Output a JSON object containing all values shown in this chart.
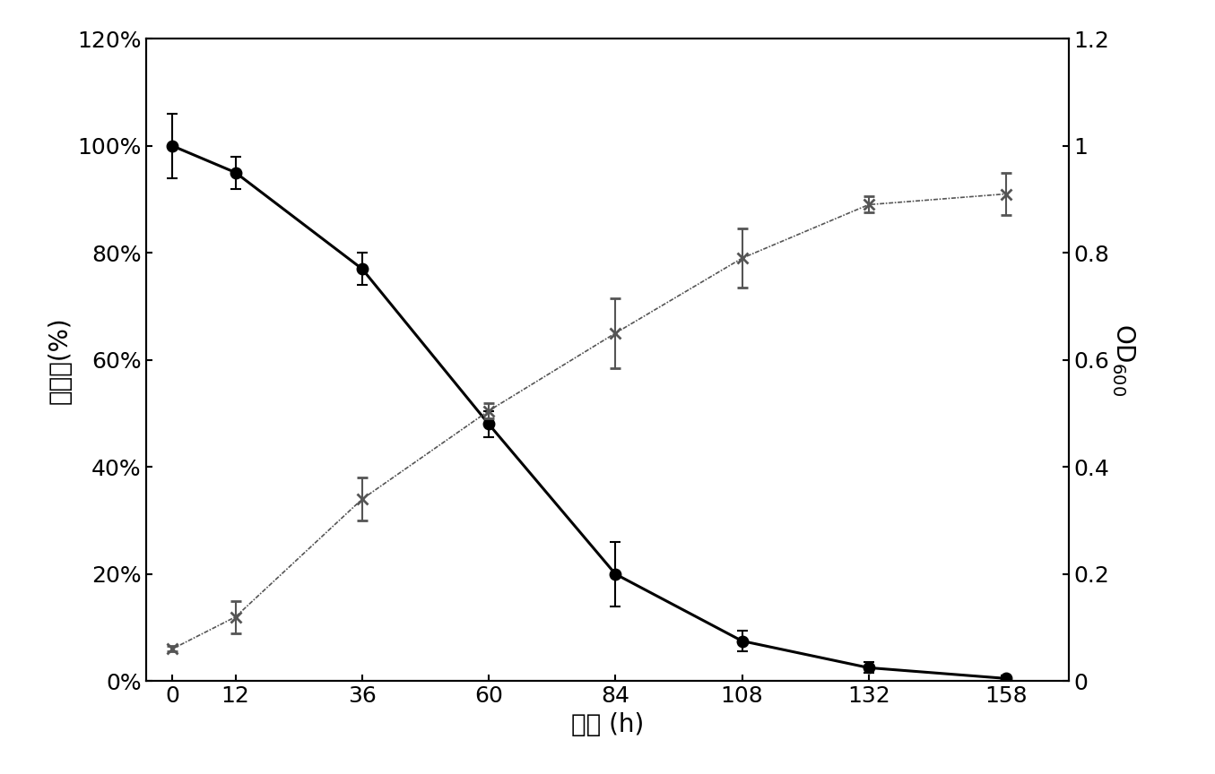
{
  "time": [
    0,
    12,
    36,
    60,
    84,
    108,
    132,
    158
  ],
  "pah_values": [
    1.0,
    0.95,
    0.77,
    0.48,
    0.2,
    0.075,
    0.025,
    0.005
  ],
  "pah_yerr": [
    0.06,
    0.03,
    0.03,
    0.025,
    0.06,
    0.02,
    0.01,
    0.005
  ],
  "od_values": [
    0.06,
    0.12,
    0.34,
    0.505,
    0.65,
    0.79,
    0.89,
    0.91
  ],
  "od_yerr": [
    0.005,
    0.03,
    0.04,
    0.015,
    0.065,
    0.055,
    0.015,
    0.04
  ],
  "pah_color": "#000000",
  "od_color": "#555555",
  "xlabel": "时间 (h)",
  "ylabel_left": "菲含量(%)",
  "ylabel_right": "OD",
  "ylabel_right_sub": "600",
  "ylim_left": [
    0,
    1.2
  ],
  "ylim_right": [
    0,
    1.2
  ],
  "yticks_left": [
    0,
    0.2,
    0.4,
    0.6,
    0.8,
    1.0,
    1.2
  ],
  "ytick_labels_left": [
    "0%",
    "20%",
    "40%",
    "60%",
    "80%",
    "100%",
    "120%"
  ],
  "yticks_right": [
    0,
    0.2,
    0.4,
    0.6,
    0.8,
    1.0,
    1.2
  ],
  "ytick_labels_right": [
    "0",
    "0.2",
    "0.4",
    "0.6",
    "0.8",
    "1",
    "1.2"
  ],
  "xticks": [
    0,
    12,
    36,
    60,
    84,
    108,
    132,
    158
  ],
  "background_color": "#ffffff",
  "font_size_labels": 20,
  "font_size_ticks": 18
}
